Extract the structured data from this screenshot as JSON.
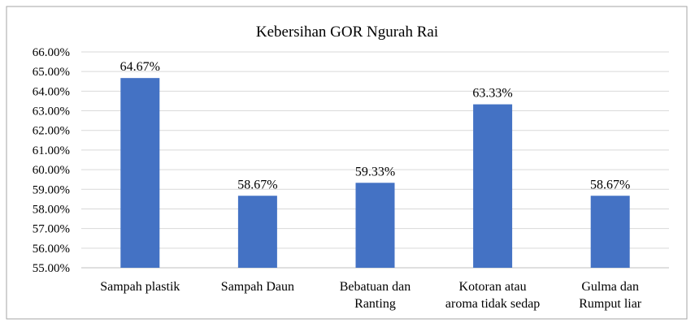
{
  "chart_data": {
    "type": "bar",
    "title": "Kebersihan  GOR Ngurah Rai",
    "xlabel": "",
    "ylabel": "",
    "categories": [
      [
        "Sampah plastik"
      ],
      [
        "Sampah Daun"
      ],
      [
        "Bebatuan dan",
        "Ranting"
      ],
      [
        "Kotoran atau",
        "aroma tidak sedap"
      ],
      [
        "Gulma dan",
        "Rumput liar"
      ]
    ],
    "values": [
      64.67,
      58.67,
      59.33,
      63.33,
      58.67
    ],
    "data_labels": [
      "64.67%",
      "58.67%",
      "59.33%",
      "63.33%",
      "58.67%"
    ],
    "ylim": [
      55,
      66
    ],
    "yticks": [
      55,
      56,
      57,
      58,
      59,
      60,
      61,
      62,
      63,
      64,
      65,
      66
    ],
    "ytick_labels": [
      "55.00%",
      "56.00%",
      "57.00%",
      "58.00%",
      "59.00%",
      "60.00%",
      "61.00%",
      "62.00%",
      "63.00%",
      "64.00%",
      "65.00%",
      "66.00%"
    ],
    "grid": true,
    "legend": "none",
    "bar_color": "#4472c4",
    "grid_color": "#d9d9d9",
    "border_color": "#a6a6a6"
  }
}
